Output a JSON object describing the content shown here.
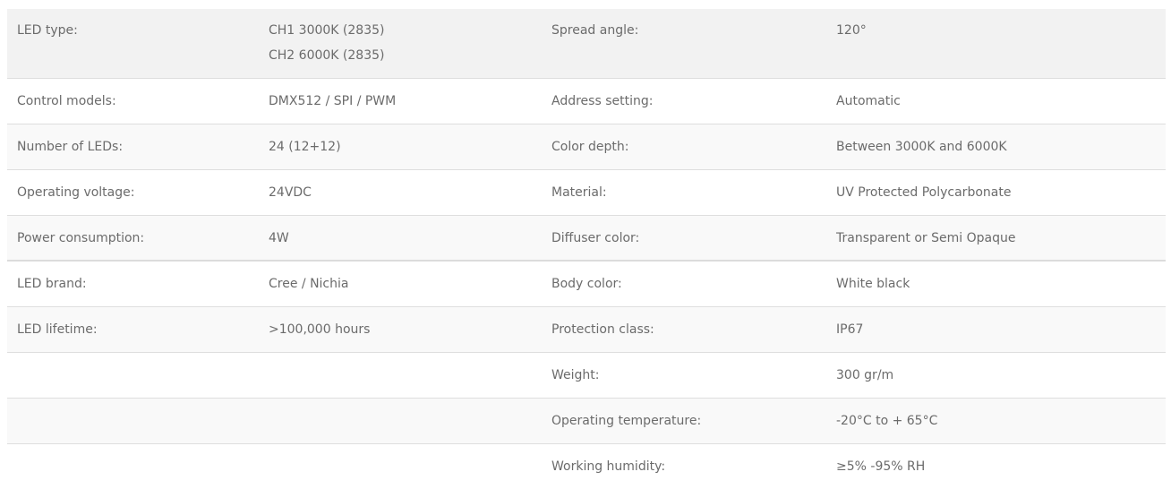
{
  "rows": [
    {
      "l_label": "LED type:",
      "l_value": "CH1 3000K (2835)",
      "l_value2": "CH2 6000K (2835)",
      "r_label": "Spread angle:",
      "r_value": "120°"
    },
    {
      "l_label": "Control models:",
      "l_value": "DMX512 / SPI / PWM",
      "r_label": "Address setting:",
      "r_value": "Automatic"
    },
    {
      "l_label": "Number of LEDs:",
      "l_value": "24 (12+12)",
      "r_label": "Color depth:",
      "r_value": "Between 3000K and 6000K"
    },
    {
      "l_label": "Operating voltage:",
      "l_value": "24VDC",
      "r_label": "Material:",
      "r_value": "UV Protected Polycarbonate"
    },
    {
      "l_label": "Power consumption:",
      "l_value": "4W",
      "r_label": "Diffuser color:",
      "r_value": "Transparent or Semi Opaque"
    },
    {
      "l_label": "LED brand:",
      "l_value": "Cree / Nichia",
      "r_label": "Body color:",
      "r_value": "White black"
    },
    {
      "l_label": "LED lifetime:",
      "l_value": ">100,000 hours",
      "r_label": "Protection class:",
      "r_value": "IP67"
    },
    {
      "l_label": "",
      "l_value": "",
      "r_label": "Weight:",
      "r_value": "300 gr/m"
    },
    {
      "l_label": "",
      "l_value": "",
      "r_label": "Operating temperature:",
      "r_value": "-20°C to + 65°C"
    },
    {
      "l_label": "",
      "l_value": "",
      "r_label": "Working humidity:",
      "r_value": "≥5% -95% RH"
    }
  ]
}
